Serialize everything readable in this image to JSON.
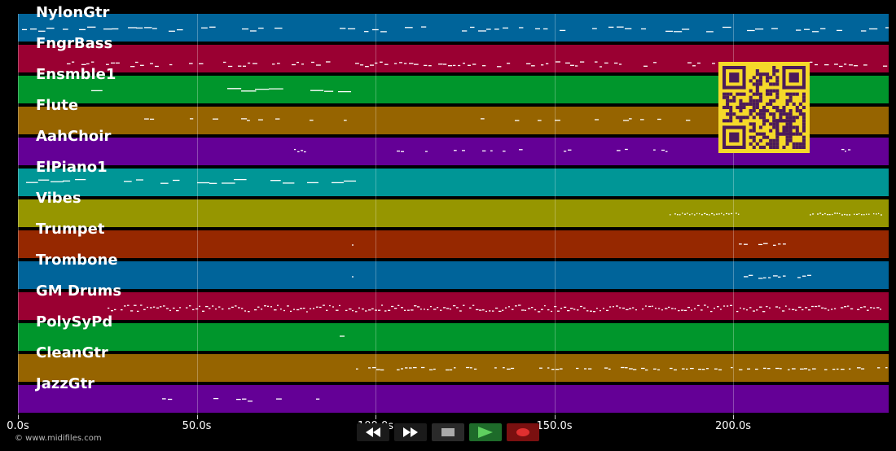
{
  "tracks": [
    {
      "name": "NylonGtr",
      "color": "#00649a"
    },
    {
      "name": "FngrBass",
      "color": "#9a0032"
    },
    {
      "name": "Ensmble1",
      "color": "#00962c"
    },
    {
      "name": "Flute",
      "color": "#966400"
    },
    {
      "name": "AahChoir",
      "color": "#640096"
    },
    {
      "name": "ElPiano1",
      "color": "#009696"
    },
    {
      "name": "Vibes",
      "color": "#969600"
    },
    {
      "name": "Trumpet",
      "color": "#962800"
    },
    {
      "name": "Trombone",
      "color": "#00649a"
    },
    {
      "name": "GM Drums",
      "color": "#9a0032"
    },
    {
      "name": "PolySyPd",
      "color": "#00962c"
    },
    {
      "name": "CleanGtr",
      "color": "#966400"
    },
    {
      "name": "JazzGtr",
      "color": "#640096"
    }
  ],
  "timeline": {
    "ticks": [
      "0.0s",
      "50.0s",
      "100.0s",
      "150.0s",
      "200.0s"
    ],
    "max_seconds": 243.5
  },
  "copyright": "© www.midifiles.com",
  "transport": {
    "buttons": [
      {
        "name": "rewind-button",
        "icon": "rewind-icon",
        "color": "#1a1a1a"
      },
      {
        "name": "fast-forward-button",
        "icon": "fast-forward-icon",
        "color": "#1a1a1a"
      },
      {
        "name": "stop-button",
        "icon": "stop-icon",
        "color": "#2a2a2a"
      },
      {
        "name": "play-button",
        "icon": "play-icon",
        "color": "#1e6b2a"
      },
      {
        "name": "record-button",
        "icon": "record-icon",
        "color": "#7a1010"
      }
    ]
  },
  "qr": {
    "icon": "qr-code-icon",
    "bg": "#f5d92a",
    "fg": "#4b1a5a"
  },
  "notes_color": "#ffffff"
}
